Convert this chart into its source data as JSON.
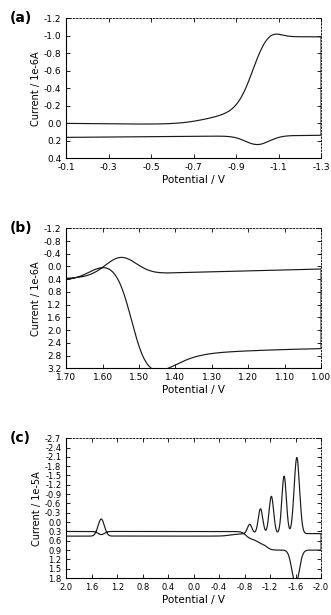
{
  "panel_a": {
    "label": "(a)",
    "ylabel": "Current / 1e-6A",
    "xlabel": "Potential / V",
    "xlim": [
      -0.1,
      -1.3
    ],
    "ylim": [
      0.4,
      -1.2
    ],
    "xticks": [
      -0.1,
      -0.3,
      -0.5,
      -0.7,
      -0.9,
      -1.1,
      -1.3
    ],
    "yticks": [
      -1.2,
      -1.0,
      -0.8,
      -0.6,
      -0.4,
      -0.2,
      0.0,
      0.2,
      0.4
    ],
    "color": "#1a1a1a"
  },
  "panel_b": {
    "label": "(b)",
    "ylabel": "Current / 1e-6A",
    "xlabel": "Potential / V",
    "xlim": [
      1.7,
      1.0
    ],
    "ylim": [
      3.2,
      -1.2
    ],
    "xticks": [
      1.7,
      1.6,
      1.5,
      1.4,
      1.3,
      1.2,
      1.1,
      1.0
    ],
    "yticks": [
      -1.2,
      -0.8,
      -0.4,
      0.0,
      0.4,
      0.8,
      1.2,
      1.6,
      2.0,
      2.4,
      2.8,
      3.2
    ],
    "color": "#1a1a1a"
  },
  "panel_c": {
    "label": "(c)",
    "ylabel": "Current / 1e-5A",
    "xlabel": "Potential / V",
    "xlim": [
      2.0,
      -2.0
    ],
    "ylim": [
      1.8,
      -2.7
    ],
    "xticks": [
      2.0,
      1.6,
      1.2,
      0.8,
      0.4,
      0.0,
      -0.4,
      -0.8,
      -1.2,
      -1.6,
      -2.0
    ],
    "yticks": [
      -2.7,
      -2.4,
      -2.1,
      -1.8,
      -1.5,
      -1.2,
      -0.9,
      -0.6,
      -0.3,
      0.0,
      0.3,
      0.6,
      0.9,
      1.2,
      1.5,
      1.8
    ],
    "color": "#1a1a1a"
  }
}
